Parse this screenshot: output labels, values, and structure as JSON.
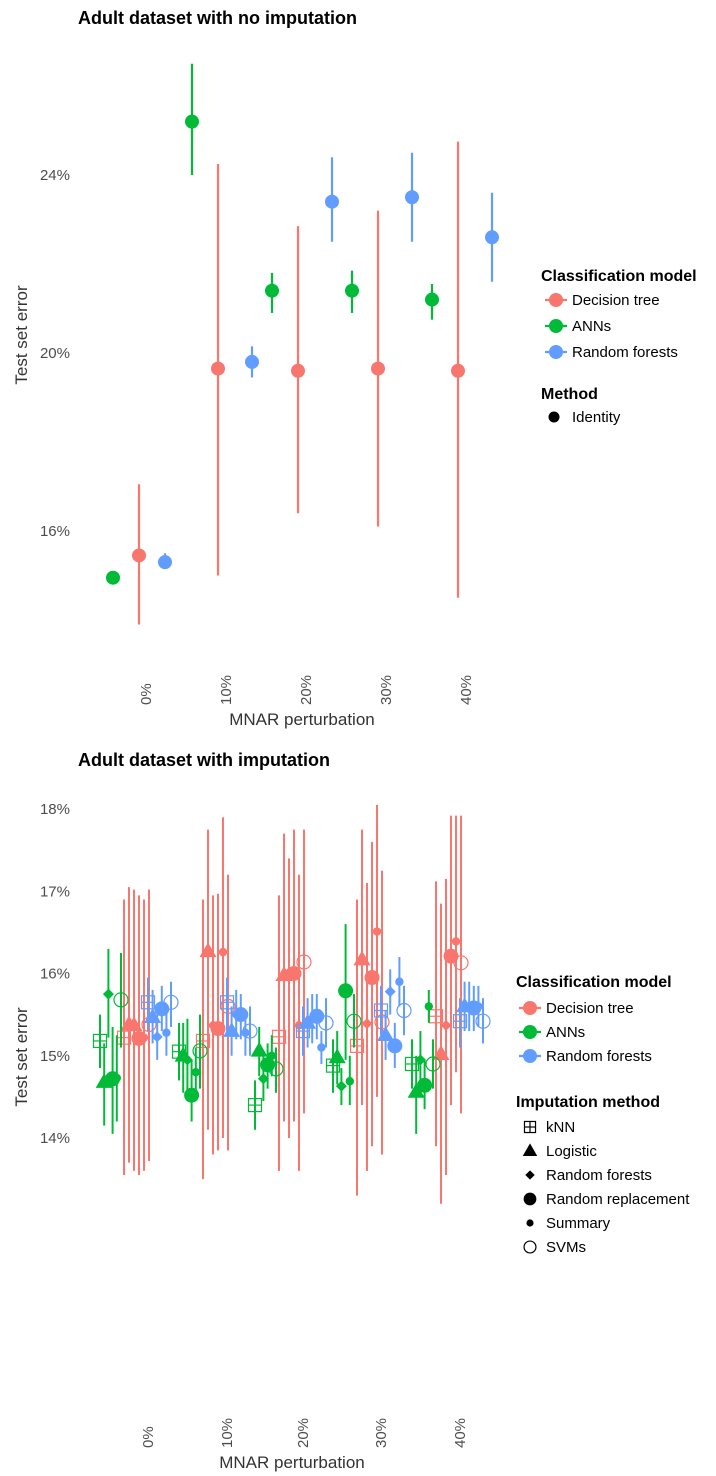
{
  "chart_data": [
    {
      "type": "scatter",
      "title": "Adult dataset with no imputation",
      "xlabel": "MNAR perturbation",
      "ylabel": "Test set error",
      "categories": [
        "0%",
        "10%",
        "20%",
        "30%",
        "40%"
      ],
      "y_ticks": [
        "16%",
        "20%",
        "24%"
      ],
      "y_tick_values": [
        16,
        20,
        24
      ],
      "ylim": [
        13.2,
        26.6
      ],
      "grid": false,
      "legend_placement": "right",
      "legend": {
        "model_title": "Classification model",
        "method_title": "Method",
        "methods": [
          {
            "name": "Identity",
            "shape": "circle"
          }
        ]
      },
      "series": [
        {
          "name": "Decision tree",
          "color": "#F8766D",
          "points": [
            {
              "x": "0%",
              "y": 15.45,
              "lo": 13.9,
              "hi": 17.05
            },
            {
              "x": "10%",
              "y": 19.65,
              "lo": 15.0,
              "hi": 24.25
            },
            {
              "x": "20%",
              "y": 19.6,
              "lo": 16.4,
              "hi": 22.85
            },
            {
              "x": "30%",
              "y": 19.65,
              "lo": 16.1,
              "hi": 23.2
            },
            {
              "x": "40%",
              "y": 19.6,
              "lo": 14.5,
              "hi": 24.75
            }
          ]
        },
        {
          "name": "ANNs",
          "color": "#00BA38",
          "points": [
            {
              "x": "0%",
              "y": 14.95,
              "lo": 14.95,
              "hi": 14.95
            },
            {
              "x": "10%",
              "y": 25.2,
              "lo": 24.0,
              "hi": 26.5
            },
            {
              "x": "20%",
              "y": 21.4,
              "lo": 20.9,
              "hi": 21.8
            },
            {
              "x": "30%",
              "y": 21.4,
              "lo": 20.9,
              "hi": 21.85
            },
            {
              "x": "40%",
              "y": 21.2,
              "lo": 20.75,
              "hi": 21.55
            }
          ]
        },
        {
          "name": "Random forests",
          "color": "#619CFF",
          "points": [
            {
              "x": "0%",
              "y": 15.3,
              "lo": 15.15,
              "hi": 15.5
            },
            {
              "x": "10%",
              "y": 19.8,
              "lo": 19.45,
              "hi": 20.15
            },
            {
              "x": "20%",
              "y": 23.4,
              "lo": 22.5,
              "hi": 24.4
            },
            {
              "x": "30%",
              "y": 23.5,
              "lo": 22.5,
              "hi": 24.5
            },
            {
              "x": "40%",
              "y": 22.6,
              "lo": 21.6,
              "hi": 23.6
            }
          ]
        }
      ]
    },
    {
      "type": "scatter",
      "title": "Adult dataset with imputation",
      "xlabel": "MNAR perturbation",
      "ylabel": "Test set error",
      "categories": [
        "0%",
        "10%",
        "20%",
        "30%",
        "40%"
      ],
      "y_ticks": [
        "14%",
        "15%",
        "16%",
        "17%",
        "18%"
      ],
      "y_tick_values": [
        14,
        15,
        16,
        17,
        18
      ],
      "ylim": [
        13.15,
        18.1
      ],
      "grid": false,
      "legend_placement": "right",
      "legend": {
        "model_title": "Classification model",
        "method_title": "Imputation method",
        "methods": [
          {
            "name": "kNN",
            "shape": "square-cross"
          },
          {
            "name": "Logistic",
            "shape": "triangle"
          },
          {
            "name": "Random forests",
            "shape": "diamond"
          },
          {
            "name": "Random replacement",
            "shape": "large-circle"
          },
          {
            "name": "Summary",
            "shape": "small-circle"
          },
          {
            "name": "SVMs",
            "shape": "open-circle"
          }
        ]
      },
      "series": [
        {
          "name": "Decision tree",
          "color": "#F8766D",
          "points": [
            {
              "x": "0%",
              "method": "kNN",
              "y": 15.22,
              "lo": 13.55,
              "hi": 16.9
            },
            {
              "x": "0%",
              "method": "Logistic",
              "y": 15.38,
              "lo": 13.7,
              "hi": 17.05
            },
            {
              "x": "0%",
              "method": "Logistic",
              "y": 15.37,
              "lo": 13.6,
              "hi": 17.02
            },
            {
              "x": "0%",
              "method": "Random replacement",
              "y": 15.21,
              "lo": 13.55,
              "hi": 16.95
            },
            {
              "x": "0%",
              "method": "Summary",
              "y": 15.22,
              "lo": 13.6,
              "hi": 16.9
            },
            {
              "x": "0%",
              "method": "SVMs",
              "y": 15.38,
              "lo": 13.72,
              "hi": 17.02
            },
            {
              "x": "10%",
              "method": "kNN",
              "y": 15.18,
              "lo": 13.5,
              "hi": 16.9
            },
            {
              "x": "10%",
              "method": "Logistic",
              "y": 16.27,
              "lo": 14.1,
              "hi": 17.75
            },
            {
              "x": "10%",
              "method": "Random forests",
              "y": 15.37,
              "lo": 13.8,
              "hi": 16.95
            },
            {
              "x": "10%",
              "method": "Random replacement",
              "y": 15.33,
              "lo": 13.85,
              "hi": 16.97
            },
            {
              "x": "10%",
              "method": "Summary",
              "y": 16.26,
              "lo": 14.0,
              "hi": 17.9
            },
            {
              "x": "10%",
              "method": "SVMs",
              "y": 15.6,
              "lo": 13.85,
              "hi": 17.2
            },
            {
              "x": "20%",
              "method": "kNN",
              "y": 15.23,
              "lo": 13.6,
              "hi": 16.95
            },
            {
              "x": "20%",
              "method": "Logistic",
              "y": 15.98,
              "lo": 14.2,
              "hi": 17.7
            },
            {
              "x": "20%",
              "method": "Random forests",
              "y": 16.01,
              "lo": 14.0,
              "hi": 17.4
            },
            {
              "x": "20%",
              "method": "Random replacement",
              "y": 16.0,
              "lo": 14.2,
              "hi": 17.75
            },
            {
              "x": "20%",
              "method": "Summary",
              "y": 15.37,
              "lo": 13.6,
              "hi": 17.2
            },
            {
              "x": "20%",
              "method": "SVMs",
              "y": 16.14,
              "lo": 14.3,
              "hi": 17.75
            },
            {
              "x": "30%",
              "method": "kNN",
              "y": 15.12,
              "lo": 13.3,
              "hi": 16.9
            },
            {
              "x": "30%",
              "method": "Logistic",
              "y": 16.17,
              "lo": 14.4,
              "hi": 17.75
            },
            {
              "x": "30%",
              "method": "Random forests",
              "y": 15.39,
              "lo": 13.6,
              "hi": 17.1
            },
            {
              "x": "30%",
              "method": "Random replacement",
              "y": 15.95,
              "lo": 13.9,
              "hi": 17.6
            },
            {
              "x": "30%",
              "method": "Summary",
              "y": 16.51,
              "lo": 14.5,
              "hi": 18.05
            },
            {
              "x": "30%",
              "method": "SVMs",
              "y": 15.41,
              "lo": 13.8,
              "hi": 17.25
            },
            {
              "x": "40%",
              "method": "kNN",
              "y": 15.48,
              "lo": 13.9,
              "hi": 17.12
            },
            {
              "x": "40%",
              "method": "Logistic",
              "y": 15.02,
              "lo": 13.2,
              "hi": 16.85
            },
            {
              "x": "40%",
              "method": "Random forests",
              "y": 15.37,
              "lo": 13.55,
              "hi": 17.15
            },
            {
              "x": "40%",
              "method": "Random replacement",
              "y": 16.21,
              "lo": 14.4,
              "hi": 17.92
            },
            {
              "x": "40%",
              "method": "Summary",
              "y": 16.39,
              "lo": 14.8,
              "hi": 17.92
            },
            {
              "x": "40%",
              "method": "SVMs",
              "y": 16.13,
              "lo": 14.3,
              "hi": 17.92
            }
          ]
        },
        {
          "name": "ANNs",
          "color": "#00BA38",
          "points": [
            {
              "x": "0%",
              "method": "kNN",
              "y": 15.18,
              "lo": 14.85,
              "hi": 15.5
            },
            {
              "x": "0%",
              "method": "Logistic",
              "y": 14.68,
              "lo": 14.15,
              "hi": 15.15
            },
            {
              "x": "0%",
              "method": "Random forests",
              "y": 15.75,
              "lo": 15.22,
              "hi": 16.3
            },
            {
              "x": "0%",
              "method": "Random replacement",
              "y": 14.72,
              "lo": 14.05,
              "hi": 15.35
            },
            {
              "x": "0%",
              "method": "Summary",
              "y": 14.73,
              "lo": 14.2,
              "hi": 15.25
            },
            {
              "x": "0%",
              "method": "SVMs",
              "y": 15.68,
              "lo": 15.1,
              "hi": 16.25
            },
            {
              "x": "10%",
              "method": "kNN",
              "y": 15.05,
              "lo": 14.7,
              "hi": 15.4
            },
            {
              "x": "10%",
              "method": "Logistic",
              "y": 15.0,
              "lo": 14.55,
              "hi": 15.4
            },
            {
              "x": "10%",
              "method": "Random forests",
              "y": 14.95,
              "lo": 14.45,
              "hi": 15.45
            },
            {
              "x": "10%",
              "method": "Random replacement",
              "y": 14.52,
              "lo": 14.2,
              "hi": 14.95
            },
            {
              "x": "10%",
              "method": "Summary",
              "y": 14.8,
              "lo": 14.5,
              "hi": 15.1
            },
            {
              "x": "10%",
              "method": "SVMs",
              "y": 15.06,
              "lo": 14.6,
              "hi": 15.5
            },
            {
              "x": "20%",
              "method": "kNN",
              "y": 14.4,
              "lo": 14.1,
              "hi": 14.7
            },
            {
              "x": "20%",
              "method": "Logistic",
              "y": 15.06,
              "lo": 14.75,
              "hi": 15.35
            },
            {
              "x": "20%",
              "method": "Random forests",
              "y": 14.72,
              "lo": 14.45,
              "hi": 15.0
            },
            {
              "x": "20%",
              "method": "Random replacement",
              "y": 14.89,
              "lo": 14.6,
              "hi": 15.15
            },
            {
              "x": "20%",
              "method": "Summary",
              "y": 15.0,
              "lo": 14.75,
              "hi": 15.25
            },
            {
              "x": "20%",
              "method": "SVMs",
              "y": 14.84,
              "lo": 14.55,
              "hi": 15.1
            },
            {
              "x": "30%",
              "method": "kNN",
              "y": 14.88,
              "lo": 14.55,
              "hi": 15.2
            },
            {
              "x": "30%",
              "method": "Logistic",
              "y": 14.98,
              "lo": 14.65,
              "hi": 15.3
            },
            {
              "x": "30%",
              "method": "Random forests",
              "y": 14.63,
              "lo": 14.4,
              "hi": 14.85
            },
            {
              "x": "30%",
              "method": "Random replacement",
              "y": 15.79,
              "lo": 14.95,
              "hi": 16.6
            },
            {
              "x": "30%",
              "method": "Summary",
              "y": 14.69,
              "lo": 14.4,
              "hi": 15.0
            },
            {
              "x": "30%",
              "method": "SVMs",
              "y": 15.42,
              "lo": 15.1,
              "hi": 15.75
            },
            {
              "x": "40%",
              "method": "kNN",
              "y": 14.9,
              "lo": 14.6,
              "hi": 15.2
            },
            {
              "x": "40%",
              "method": "Logistic",
              "y": 14.56,
              "lo": 14.05,
              "hi": 15.0
            },
            {
              "x": "40%",
              "method": "Random forests",
              "y": 14.95,
              "lo": 14.6,
              "hi": 15.3
            },
            {
              "x": "40%",
              "method": "Random replacement",
              "y": 14.64,
              "lo": 14.35,
              "hi": 14.95
            },
            {
              "x": "40%",
              "method": "Summary",
              "y": 15.6,
              "lo": 15.4,
              "hi": 15.8
            },
            {
              "x": "40%",
              "method": "SVMs",
              "y": 14.9,
              "lo": 14.6,
              "hi": 15.2
            }
          ]
        },
        {
          "name": "Random forests",
          "color": "#619CFF",
          "points": [
            {
              "x": "0%",
              "method": "kNN",
              "y": 15.65,
              "lo": 15.3,
              "hi": 15.95
            },
            {
              "x": "0%",
              "method": "Logistic",
              "y": 15.47,
              "lo": 15.15,
              "hi": 15.8
            },
            {
              "x": "0%",
              "method": "Random forests",
              "y": 15.23,
              "lo": 14.95,
              "hi": 15.5
            },
            {
              "x": "0%",
              "method": "Random replacement",
              "y": 15.57,
              "lo": 15.3,
              "hi": 15.85
            },
            {
              "x": "0%",
              "method": "Summary",
              "y": 15.28,
              "lo": 15.0,
              "hi": 15.55
            },
            {
              "x": "0%",
              "method": "SVMs",
              "y": 15.65,
              "lo": 15.35,
              "hi": 15.9
            },
            {
              "x": "10%",
              "method": "kNN",
              "y": 15.65,
              "lo": 15.3,
              "hi": 15.95
            },
            {
              "x": "10%",
              "method": "Logistic",
              "y": 15.3,
              "lo": 15.0,
              "hi": 15.6
            },
            {
              "x": "10%",
              "method": "Random forests",
              "y": 15.5,
              "lo": 15.2,
              "hi": 15.8
            },
            {
              "x": "10%",
              "method": "Random replacement",
              "y": 15.5,
              "lo": 15.2,
              "hi": 15.75
            },
            {
              "x": "10%",
              "method": "Summary",
              "y": 15.28,
              "lo": 15.0,
              "hi": 15.55
            },
            {
              "x": "10%",
              "method": "SVMs",
              "y": 15.3,
              "lo": 15.0,
              "hi": 15.6
            },
            {
              "x": "20%",
              "method": "kNN",
              "y": 15.3,
              "lo": 15.0,
              "hi": 15.6
            },
            {
              "x": "20%",
              "method": "Logistic",
              "y": 15.4,
              "lo": 15.1,
              "hi": 15.7
            },
            {
              "x": "20%",
              "method": "Random forests",
              "y": 15.45,
              "lo": 15.15,
              "hi": 15.75
            },
            {
              "x": "20%",
              "method": "Random replacement",
              "y": 15.48,
              "lo": 15.2,
              "hi": 15.75
            },
            {
              "x": "20%",
              "method": "Summary",
              "y": 15.1,
              "lo": 14.9,
              "hi": 15.3
            },
            {
              "x": "20%",
              "method": "SVMs",
              "y": 15.4,
              "lo": 15.1,
              "hi": 15.7
            },
            {
              "x": "30%",
              "method": "kNN",
              "y": 15.55,
              "lo": 15.25,
              "hi": 15.85
            },
            {
              "x": "30%",
              "method": "Logistic",
              "y": 15.25,
              "lo": 14.95,
              "hi": 15.55
            },
            {
              "x": "30%",
              "method": "Random forests",
              "y": 15.78,
              "lo": 15.5,
              "hi": 16.05
            },
            {
              "x": "30%",
              "method": "Random replacement",
              "y": 15.12,
              "lo": 14.85,
              "hi": 15.4
            },
            {
              "x": "30%",
              "method": "Summary",
              "y": 15.9,
              "lo": 15.6,
              "hi": 16.2
            },
            {
              "x": "30%",
              "method": "SVMs",
              "y": 15.55,
              "lo": 15.25,
              "hi": 15.85
            },
            {
              "x": "40%",
              "method": "kNN",
              "y": 15.42,
              "lo": 15.1,
              "hi": 15.7
            },
            {
              "x": "40%",
              "method": "Logistic",
              "y": 15.6,
              "lo": 15.3,
              "hi": 15.9
            },
            {
              "x": "40%",
              "method": "Random forests",
              "y": 15.6,
              "lo": 15.3,
              "hi": 15.9
            },
            {
              "x": "40%",
              "method": "Random replacement",
              "y": 15.58,
              "lo": 15.3,
              "hi": 15.85
            },
            {
              "x": "40%",
              "method": "Summary",
              "y": 15.6,
              "lo": 15.35,
              "hi": 15.85
            },
            {
              "x": "40%",
              "method": "SVMs",
              "y": 15.42,
              "lo": 15.15,
              "hi": 15.7
            }
          ]
        }
      ]
    }
  ]
}
